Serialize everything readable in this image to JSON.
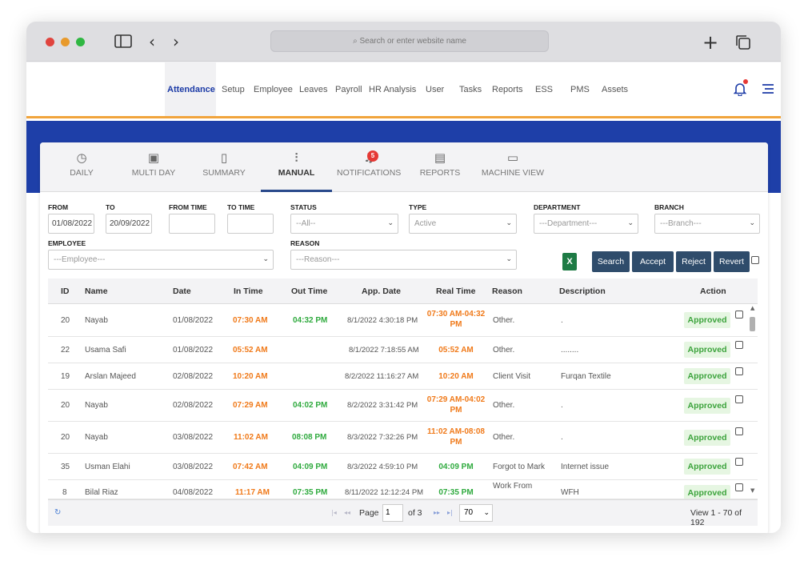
{
  "browser": {
    "address_placeholder": "Search or enter website name"
  },
  "nav": {
    "items": [
      "Attendance",
      "Setup",
      "Employee",
      "Leaves",
      "Payroll",
      "HR Analysis",
      "User",
      "Tasks",
      "Reports",
      "ESS",
      "PMS",
      "Assets"
    ]
  },
  "tabs": {
    "items": [
      {
        "label": "DAILY",
        "icon": "clock-icon"
      },
      {
        "label": "MULTI DAY",
        "icon": "calendar-icon"
      },
      {
        "label": "SUMMARY",
        "icon": "clipboard-icon"
      },
      {
        "label": "MANUAL",
        "icon": "sliders-icon"
      },
      {
        "label": "NOTIFICATIONS",
        "icon": "bell-icon"
      },
      {
        "label": "REPORTS",
        "icon": "document-icon"
      },
      {
        "label": "MACHINE VIEW",
        "icon": "monitor-icon"
      }
    ],
    "notification_count": "5"
  },
  "filters": {
    "from_label": "FROM",
    "from_value": "01/08/2022",
    "to_label": "TO",
    "to_value": "20/09/2022",
    "from_time_label": "FROM TIME",
    "to_time_label": "TO TIME",
    "status_label": "STATUS",
    "status_value": "--All--",
    "type_label": "TYPE",
    "type_value": "Active",
    "department_label": "DEPARTMENT",
    "department_value": "---Department---",
    "branch_label": "BRANCH",
    "branch_value": "---Branch---",
    "employee_label": "EMPLOYEE",
    "employee_value": "---Employee---",
    "reason_label": "REASON",
    "reason_value": "---Reason---"
  },
  "actions": {
    "search": "Search",
    "accept": "Accept",
    "reject": "Reject",
    "revert": "Revert"
  },
  "table": {
    "headers": [
      "ID",
      "Name",
      "Date",
      "In Time",
      "Out Time",
      "App. Date",
      "Real Time",
      "Reason",
      "Description",
      "Action"
    ],
    "rows": [
      {
        "id": "20",
        "name": "Nayab",
        "date": "01/08/2022",
        "in": "07:30 AM",
        "out": "04:32 PM",
        "app": "8/1/2022 4:30:18 PM",
        "real1": "07:30 AM-04:32",
        "real2": "PM",
        "reason": "Other.",
        "reason2": "",
        "desc": ".",
        "action": "Approved"
      },
      {
        "id": "22",
        "name": "Usama Safi",
        "date": "01/08/2022",
        "in": "05:52 AM",
        "out": "",
        "app": "8/1/2022 7:18:55 AM",
        "real1": "05:52 AM",
        "real2": "",
        "reason": "Other.",
        "reason2": "",
        "desc": "........",
        "action": "Approved"
      },
      {
        "id": "19",
        "name": "Arslan Majeed",
        "date": "02/08/2022",
        "in": "10:20 AM",
        "out": "",
        "app": "8/2/2022 11:16:27 AM",
        "real1": "10:20 AM",
        "real2": "",
        "reason": "Client Visit",
        "reason2": "",
        "desc": "Furqan Textile",
        "action": "Approved"
      },
      {
        "id": "20",
        "name": "Nayab",
        "date": "02/08/2022",
        "in": "07:29 AM",
        "out": "04:02 PM",
        "app": "8/2/2022 3:31:42 PM",
        "real1": "07:29 AM-04:02",
        "real2": "PM",
        "reason": "Other.",
        "reason2": "",
        "desc": ".",
        "action": "Approved"
      },
      {
        "id": "20",
        "name": "Nayab",
        "date": "03/08/2022",
        "in": "11:02 AM",
        "out": "08:08 PM",
        "app": "8/3/2022 7:32:26 PM",
        "real1": "11:02 AM-08:08",
        "real2": "PM",
        "reason": "Other.",
        "reason2": "",
        "desc": ".",
        "action": "Approved"
      },
      {
        "id": "35",
        "name": "Usman Elahi",
        "date": "03/08/2022",
        "in": "07:42 AM",
        "out": "04:09 PM",
        "app": "8/3/2022 4:59:10 PM",
        "real1": "04:09 PM",
        "real2": "",
        "reason": "Forgot to Mark",
        "reason2": "",
        "desc": "Internet issue",
        "action": "Approved"
      },
      {
        "id": "8",
        "name": "Bilal Riaz",
        "date": "04/08/2022",
        "in": "11:17 AM",
        "out": "07:35 PM",
        "app": "8/11/2022 12:12:24 PM",
        "real1": "07:35 PM",
        "real2": "",
        "reason": "Work From",
        "reason2": "",
        "desc": "WFH",
        "action": "Approved"
      }
    ]
  },
  "pager": {
    "page_label": "Page",
    "page_value": "1",
    "of_label": "of 3",
    "page_size": "70",
    "view_text": "View 1 - 70 of 192"
  }
}
